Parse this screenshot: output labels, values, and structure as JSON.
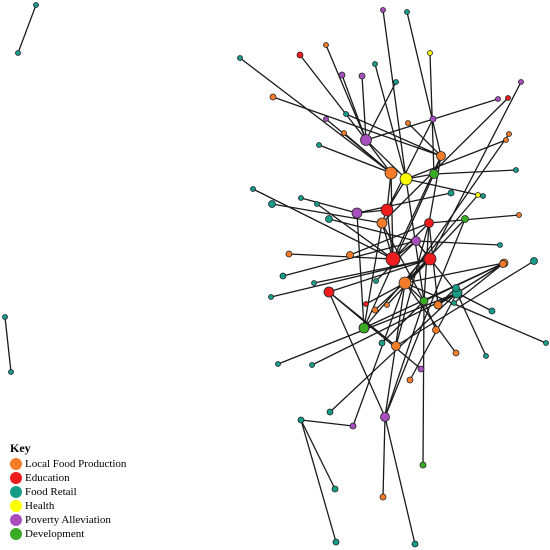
{
  "legend": {
    "title": "Key",
    "items": [
      {
        "label": "Local Food Production",
        "color": "#f47c2a"
      },
      {
        "label": "Education",
        "color": "#ee1c1c"
      },
      {
        "label": "Food Retail",
        "color": "#179c88"
      },
      {
        "label": "Health",
        "color": "#ffff00"
      },
      {
        "label": "Poverty Alleviation",
        "color": "#a84fc0"
      },
      {
        "label": "Development",
        "color": "#3aac24"
      }
    ]
  },
  "nodes": [
    {
      "id": "n1",
      "cat": "Food Retail"
    },
    {
      "id": "n2",
      "cat": "Food Retail"
    },
    {
      "id": "n3",
      "cat": "Food Retail"
    },
    {
      "id": "n4",
      "cat": "Food Retail"
    },
    {
      "id": "c1",
      "cat": "Poverty Alleviation"
    },
    {
      "id": "c2",
      "cat": "Local Food Production"
    },
    {
      "id": "c3",
      "cat": "Health"
    },
    {
      "id": "c4",
      "cat": "Education"
    },
    {
      "id": "c5",
      "cat": "Development"
    },
    {
      "id": "c6",
      "cat": "Local Food Production"
    },
    {
      "id": "c7",
      "cat": "Education"
    },
    {
      "id": "c8",
      "cat": "Poverty Alleviation"
    },
    {
      "id": "c9",
      "cat": "Local Food Production"
    },
    {
      "id": "c10",
      "cat": "Education"
    },
    {
      "id": "c11",
      "cat": "Poverty Alleviation"
    },
    {
      "id": "c12",
      "cat": "Education"
    },
    {
      "id": "c13",
      "cat": "Local Food Production"
    },
    {
      "id": "c14",
      "cat": "Food Retail"
    },
    {
      "id": "c15",
      "cat": "Development"
    },
    {
      "id": "c16",
      "cat": "Development"
    },
    {
      "id": "c17",
      "cat": "Local Food Production"
    },
    {
      "id": "c18",
      "cat": "Local Food Production"
    },
    {
      "id": "c19",
      "cat": "Education"
    },
    {
      "id": "c20",
      "cat": "Poverty Alleviation"
    },
    {
      "id": "c21",
      "cat": "Development"
    },
    {
      "id": "c22",
      "cat": "Local Food Production"
    },
    {
      "id": "p1",
      "cat": "Poverty Alleviation"
    },
    {
      "id": "p2",
      "cat": "Food Retail"
    },
    {
      "id": "p3",
      "cat": "Education"
    },
    {
      "id": "p4",
      "cat": "Poverty Alleviation"
    },
    {
      "id": "p5",
      "cat": "Poverty Alleviation"
    },
    {
      "id": "p6",
      "cat": "Health"
    },
    {
      "id": "p7",
      "cat": "Local Food Production"
    },
    {
      "id": "p8",
      "cat": "Food Retail"
    },
    {
      "id": "p9",
      "cat": "Poverty Alleviation"
    },
    {
      "id": "p10",
      "cat": "Food Retail"
    },
    {
      "id": "p11",
      "cat": "Food Retail"
    },
    {
      "id": "p12",
      "cat": "Local Food Production"
    },
    {
      "id": "p13",
      "cat": "Poverty Alleviation"
    },
    {
      "id": "p14",
      "cat": "Local Food Production"
    },
    {
      "id": "p15",
      "cat": "Food Retail"
    },
    {
      "id": "p16",
      "cat": "Poverty Alleviation"
    },
    {
      "id": "p17",
      "cat": "Local Food Production"
    },
    {
      "id": "p18",
      "cat": "Food Retail"
    },
    {
      "id": "p19",
      "cat": "Food Retail"
    },
    {
      "id": "p20",
      "cat": "Local Food Production"
    },
    {
      "id": "p21",
      "cat": "Food Retail"
    },
    {
      "id": "p22",
      "cat": "Health"
    },
    {
      "id": "p23",
      "cat": "Food Retail"
    },
    {
      "id": "p24",
      "cat": "Food Retail"
    },
    {
      "id": "p25",
      "cat": "Food Retail"
    },
    {
      "id": "p26",
      "cat": "Food Retail"
    },
    {
      "id": "p27",
      "cat": "Local Food Production"
    },
    {
      "id": "p28",
      "cat": "Food Retail"
    },
    {
      "id": "p29",
      "cat": "Food Retail"
    },
    {
      "id": "p30",
      "cat": "Local Food Production"
    },
    {
      "id": "p31",
      "cat": "Food Retail"
    },
    {
      "id": "p32",
      "cat": "Food Retail"
    },
    {
      "id": "p33",
      "cat": "Local Food Production"
    },
    {
      "id": "p34",
      "cat": "Food Retail"
    },
    {
      "id": "p35",
      "cat": "Local Food Production"
    },
    {
      "id": "p36",
      "cat": "Food Retail"
    },
    {
      "id": "p37",
      "cat": "Food Retail"
    },
    {
      "id": "p38",
      "cat": "Local Food Production"
    },
    {
      "id": "p39",
      "cat": "Education"
    },
    {
      "id": "p40",
      "cat": "Poverty Alleviation"
    },
    {
      "id": "p41",
      "cat": "Food Retail"
    },
    {
      "id": "p42",
      "cat": "Food Retail"
    },
    {
      "id": "p43",
      "cat": "Education"
    },
    {
      "id": "p44",
      "cat": "Poverty Alleviation"
    },
    {
      "id": "p45",
      "cat": "Local Food Production"
    },
    {
      "id": "p46",
      "cat": "Food Retail"
    },
    {
      "id": "p47",
      "cat": "Food Retail"
    },
    {
      "id": "p48",
      "cat": "Food Retail"
    },
    {
      "id": "p49",
      "cat": "Local Food Production"
    },
    {
      "id": "p50",
      "cat": "Food Retail"
    },
    {
      "id": "p51",
      "cat": "Food Retail"
    },
    {
      "id": "p52",
      "cat": "Local Food Production"
    },
    {
      "id": "p53",
      "cat": "Poverty Alleviation"
    },
    {
      "id": "p54",
      "cat": "Local Food Production"
    },
    {
      "id": "p55",
      "cat": "Food Retail"
    },
    {
      "id": "p56",
      "cat": "Food Retail"
    },
    {
      "id": "p57",
      "cat": "Food Retail"
    },
    {
      "id": "p58",
      "cat": "Local Food Production"
    },
    {
      "id": "p59",
      "cat": "Food Retail"
    },
    {
      "id": "p60",
      "cat": "Development"
    },
    {
      "id": "p61",
      "cat": "Food Retail"
    },
    {
      "id": "p62",
      "cat": "Food Retail"
    },
    {
      "id": "p63",
      "cat": "Food Retail"
    },
    {
      "id": "p64",
      "cat": "Local Food Production"
    }
  ],
  "edges": [
    [
      "n1",
      "n2"
    ],
    [
      "n3",
      "n4"
    ],
    [
      "p1",
      "c3"
    ],
    [
      "p3",
      "c1"
    ],
    [
      "p4",
      "c1"
    ],
    [
      "p5",
      "c1"
    ],
    [
      "p6",
      "c5"
    ],
    [
      "p2",
      "c2"
    ],
    [
      "p7",
      "c1"
    ],
    [
      "p9",
      "c2"
    ],
    [
      "p10",
      "c1"
    ],
    [
      "p8",
      "c6"
    ],
    [
      "p11",
      "c3"
    ],
    [
      "p12",
      "c6"
    ],
    [
      "p14",
      "c2"
    ],
    [
      "p15",
      "c6"
    ],
    [
      "p16",
      "c4"
    ],
    [
      "p13",
      "c1"
    ],
    [
      "p17",
      "c3"
    ],
    [
      "p18",
      "c5"
    ],
    [
      "p19",
      "c2"
    ],
    [
      "p20",
      "c6"
    ],
    [
      "p21",
      "c3"
    ],
    [
      "p22",
      "c15"
    ],
    [
      "p23",
      "c9"
    ],
    [
      "p24",
      "c8"
    ],
    [
      "p25",
      "c8"
    ],
    [
      "p26",
      "c7"
    ],
    [
      "p27",
      "c7"
    ],
    [
      "p28",
      "c7"
    ],
    [
      "p29",
      "c11"
    ],
    [
      "p30",
      "c10"
    ],
    [
      "p31",
      "c11"
    ],
    [
      "p32",
      "c11"
    ],
    [
      "p33",
      "c10"
    ],
    [
      "p34",
      "c11"
    ],
    [
      "p35",
      "c17"
    ],
    [
      "p36",
      "c17"
    ],
    [
      "p37",
      "c18"
    ],
    [
      "p38",
      "c13"
    ],
    [
      "p39",
      "c9"
    ],
    [
      "p40",
      "c12"
    ],
    [
      "p41",
      "c12"
    ],
    [
      "p42",
      "c12"
    ],
    [
      "p43",
      "c13"
    ],
    [
      "p44",
      "c19"
    ],
    [
      "p45",
      "c13"
    ],
    [
      "p46",
      "c13"
    ],
    [
      "p47",
      "c14"
    ],
    [
      "p48",
      "c14"
    ],
    [
      "p49",
      "c16"
    ],
    [
      "p50",
      "c16"
    ],
    [
      "p51",
      "c14"
    ],
    [
      "p52",
      "c20"
    ],
    [
      "p53",
      "c13"
    ],
    [
      "p54",
      "c12"
    ],
    [
      "p55",
      "p53"
    ],
    [
      "p56",
      "c14"
    ],
    [
      "p57",
      "p55"
    ],
    [
      "p58",
      "c14"
    ],
    [
      "p59",
      "p55"
    ],
    [
      "p60",
      "c16"
    ],
    [
      "p61",
      "c14"
    ],
    [
      "p62",
      "c22"
    ],
    [
      "p63",
      "c20"
    ],
    [
      "p64",
      "c12"
    ],
    [
      "c1",
      "c2"
    ],
    [
      "c1",
      "c3"
    ],
    [
      "c2",
      "c4"
    ],
    [
      "c3",
      "c4"
    ],
    [
      "c3",
      "c5"
    ],
    [
      "c2",
      "c7"
    ],
    [
      "c4",
      "c7"
    ],
    [
      "c4",
      "c9"
    ],
    [
      "c4",
      "c8"
    ],
    [
      "c5",
      "c6"
    ],
    [
      "c6",
      "c7"
    ],
    [
      "c6",
      "c10"
    ],
    [
      "c7",
      "c9"
    ],
    [
      "c7",
      "c11"
    ],
    [
      "c7",
      "c10"
    ],
    [
      "c9",
      "c15"
    ],
    [
      "c9",
      "c16"
    ],
    [
      "c10",
      "c16"
    ],
    [
      "c10",
      "c18"
    ],
    [
      "c11",
      "c12"
    ],
    [
      "c11",
      "c14"
    ],
    [
      "c12",
      "c13"
    ],
    [
      "c12",
      "c19"
    ],
    [
      "c13",
      "c16"
    ],
    [
      "c13",
      "c20"
    ],
    [
      "c14",
      "c22"
    ],
    [
      "c15",
      "c8"
    ],
    [
      "c15",
      "c22"
    ],
    [
      "c16",
      "c20"
    ],
    [
      "c16",
      "c22"
    ],
    [
      "c17",
      "c10"
    ],
    [
      "c18",
      "c19"
    ],
    [
      "c19",
      "c20"
    ],
    [
      "c20",
      "c21"
    ],
    [
      "c21",
      "c13"
    ],
    [
      "c22",
      "c13"
    ],
    [
      "c5",
      "c15"
    ],
    [
      "c3",
      "c16"
    ]
  ]
}
